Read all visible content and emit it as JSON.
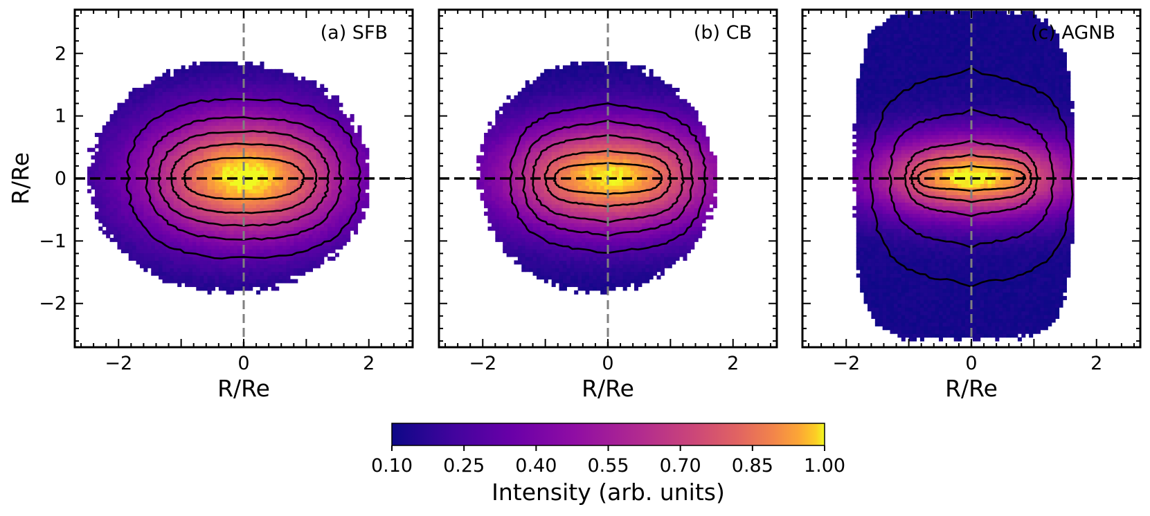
{
  "chart_data": {
    "type": "heatmap",
    "description_colormap": "plasma",
    "panels": [
      {
        "label": "(a) SFB",
        "xlabel": "R/Re",
        "ylabel": "R/Re",
        "xlim": [
          -2.7,
          2.7
        ],
        "ylim": [
          -2.7,
          2.7
        ],
        "xticks": [
          -2,
          0,
          2
        ],
        "yticks": [
          -2,
          -1,
          0,
          1,
          2
        ],
        "xtick_labels": [
          "−2",
          "0",
          "2"
        ],
        "ytick_labels": [
          "−2",
          "−1",
          "0",
          "1",
          "2"
        ],
        "extent_x": [
          -2.5,
          2.0
        ],
        "extent_y": [
          -1.85,
          1.85
        ],
        "peak_intensity": 1.0,
        "core_half_width": [
          0.8,
          0.35
        ],
        "contour_levels": [
          {
            "rx": 0.95,
            "ry": 0.33,
            "squash": 0.0
          },
          {
            "rx": 1.15,
            "ry": 0.55,
            "squash": 0.0
          },
          {
            "rx": 1.35,
            "ry": 0.75,
            "squash": 0.0
          },
          {
            "rx": 1.55,
            "ry": 0.97,
            "squash": 0.0
          },
          {
            "rx": 1.85,
            "ry": 1.27,
            "squash": 0.0
          }
        ]
      },
      {
        "label": "(b) CB",
        "xlabel": "R/Re",
        "ylabel": "",
        "xlim": [
          -2.7,
          2.7
        ],
        "ylim": [
          -2.7,
          2.7
        ],
        "xticks": [
          -2,
          0,
          2
        ],
        "yticks": [
          -2,
          -1,
          0,
          1,
          2
        ],
        "xtick_labels": [
          "−2",
          "0",
          "2"
        ],
        "ytick_labels": [],
        "extent_x": [
          -2.1,
          1.7
        ],
        "extent_y": [
          -1.85,
          1.85
        ],
        "peak_intensity": 0.98,
        "core_half_width": [
          0.85,
          0.3
        ],
        "contour_levels": [
          {
            "rx": 0.85,
            "ry": 0.25,
            "squash": 0.3
          },
          {
            "rx": 1.0,
            "ry": 0.45,
            "squash": 0.3
          },
          {
            "rx": 1.2,
            "ry": 0.7,
            "squash": 0.3
          },
          {
            "rx": 1.35,
            "ry": 0.92,
            "squash": 0.25
          },
          {
            "rx": 1.55,
            "ry": 1.2,
            "squash": 0.2
          }
        ]
      },
      {
        "label": "(c) AGNB",
        "xlabel": "R/Re",
        "ylabel": "",
        "xlim": [
          -2.7,
          2.7
        ],
        "ylim": [
          -2.7,
          2.7
        ],
        "xticks": [
          -2,
          0,
          2
        ],
        "yticks": [
          -2,
          -1,
          0,
          1,
          2
        ],
        "xtick_labels": [
          "−2",
          "0",
          "2"
        ],
        "ytick_labels": [],
        "extent_x": [
          -1.9,
          1.6
        ],
        "extent_y": [
          -2.6,
          2.65
        ],
        "peak_intensity": 1.0,
        "core_half_width": [
          0.8,
          0.22
        ],
        "contour_levels": [
          {
            "rx": 0.85,
            "ry": 0.2,
            "squash": 0.55
          },
          {
            "rx": 0.95,
            "ry": 0.38,
            "squash": 0.45
          },
          {
            "rx": 1.05,
            "ry": 0.6,
            "squash": 0.4
          },
          {
            "rx": 1.3,
            "ry": 1.1,
            "squash": 0.35
          },
          {
            "rx": 1.6,
            "ry": 1.75,
            "squash": 0.3
          }
        ]
      }
    ],
    "colorbar": {
      "title": "Intensity (arb. units)",
      "range": [
        0.1,
        1.0
      ],
      "ticks": [
        0.1,
        0.25,
        0.4,
        0.55,
        0.7,
        0.85,
        1.0
      ],
      "tick_labels": [
        "0.10",
        "0.25",
        "0.40",
        "0.55",
        "0.70",
        "0.85",
        "1.00"
      ]
    },
    "reference_lines": {
      "horizontal": {
        "y": 0,
        "style": "dashed",
        "color": "#000000"
      },
      "vertical": {
        "x": 0,
        "style": "dashed",
        "color": "#808080"
      }
    }
  }
}
